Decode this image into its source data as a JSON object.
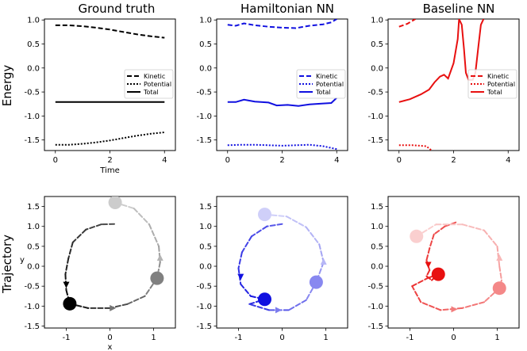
{
  "column_titles": [
    "Ground truth",
    "Hamiltonian NN",
    "Baseline NN"
  ],
  "row_labels": [
    "Energy",
    "Trajectory"
  ],
  "colors": {
    "truth": "#000000",
    "hnn": "#1010e0",
    "baseline": "#e81010"
  },
  "chart_data": [
    {
      "type": "line",
      "title": "Ground truth",
      "xlabel": "Time",
      "ylabel": "Energy",
      "xlim": [
        -0.4,
        4.4
      ],
      "ylim": [
        -1.72,
        1.02
      ],
      "xticks": [
        "0",
        "2",
        "4"
      ],
      "yticks": [
        "1.0",
        "0.5",
        "0.0",
        "-0.5",
        "-1.0",
        "-1.5"
      ],
      "legend_position": "center-right",
      "series": [
        {
          "name": "Kinetic",
          "style": "dashed",
          "x": [
            0,
            0.5,
            1,
            1.5,
            2,
            2.5,
            3,
            3.5,
            4
          ],
          "y": [
            0.89,
            0.89,
            0.87,
            0.84,
            0.8,
            0.75,
            0.7,
            0.66,
            0.63
          ]
        },
        {
          "name": "Potential",
          "style": "dotted",
          "x": [
            0,
            0.5,
            1,
            1.5,
            2,
            2.5,
            3,
            3.5,
            4
          ],
          "y": [
            -1.6,
            -1.6,
            -1.58,
            -1.55,
            -1.51,
            -1.46,
            -1.41,
            -1.37,
            -1.34
          ]
        },
        {
          "name": "Total",
          "style": "solid",
          "x": [
            0,
            4
          ],
          "y": [
            -0.71,
            -0.71
          ]
        }
      ]
    },
    {
      "type": "line",
      "title": "Hamiltonian NN",
      "xlabel": "",
      "ylabel": "",
      "xlim": [
        -0.4,
        4.4
      ],
      "ylim": [
        -1.72,
        1.02
      ],
      "xticks": [
        "0",
        "2",
        "4"
      ],
      "yticks": [
        "1.0",
        "0.5",
        "0.0",
        "-0.5",
        "-1.0",
        "-1.5"
      ],
      "legend_position": "center-right",
      "series": [
        {
          "name": "Kinetic",
          "style": "dashed",
          "x": [
            0,
            0.3,
            0.6,
            1.0,
            1.5,
            2.0,
            2.5,
            3.0,
            3.5,
            3.8,
            4.0
          ],
          "y": [
            0.9,
            0.88,
            0.93,
            0.89,
            0.86,
            0.84,
            0.83,
            0.88,
            0.91,
            0.95,
            1.02
          ]
        },
        {
          "name": "Potential",
          "style": "dotted",
          "x": [
            0,
            0.5,
            1.0,
            1.5,
            2.0,
            2.5,
            3.0,
            3.5,
            4.0
          ],
          "y": [
            -1.61,
            -1.6,
            -1.6,
            -1.61,
            -1.62,
            -1.61,
            -1.6,
            -1.63,
            -1.69
          ]
        },
        {
          "name": "Total",
          "style": "solid",
          "x": [
            0,
            0.3,
            0.6,
            1.0,
            1.5,
            1.8,
            2.2,
            2.6,
            3.0,
            3.5,
            3.8,
            4.0
          ],
          "y": [
            -0.71,
            -0.71,
            -0.66,
            -0.7,
            -0.72,
            -0.78,
            -0.77,
            -0.79,
            -0.76,
            -0.74,
            -0.73,
            -0.62
          ]
        }
      ]
    },
    {
      "type": "line",
      "title": "Baseline NN",
      "xlabel": "",
      "ylabel": "",
      "xlim": [
        -0.4,
        4.4
      ],
      "ylim": [
        -1.72,
        1.02
      ],
      "xticks": [
        "0",
        "2",
        "4"
      ],
      "yticks": [
        "1.0",
        "0.5",
        "0.0",
        "-0.5",
        "-1.0",
        "-1.5"
      ],
      "legend_position": "center-right",
      "series": [
        {
          "name": "Kinetic",
          "style": "dashed",
          "x": [
            0,
            0.3,
            0.6
          ],
          "y": [
            0.86,
            0.92,
            1.02
          ]
        },
        {
          "name": "Potential",
          "style": "dotted",
          "x": [
            0,
            0.5,
            1.0,
            1.2
          ],
          "y": [
            -1.61,
            -1.61,
            -1.63,
            -1.72
          ]
        },
        {
          "name": "Total",
          "style": "solid",
          "x": [
            0,
            0.4,
            0.8,
            1.1,
            1.3,
            1.5,
            1.65,
            1.8,
            2.0,
            2.15,
            2.2,
            2.3,
            2.38,
            2.45,
            2.55,
            2.7,
            2.8,
            2.9,
            3.0,
            3.1
          ],
          "y": [
            -0.71,
            -0.65,
            -0.55,
            -0.45,
            -0.3,
            -0.18,
            -0.14,
            -0.22,
            0.1,
            0.6,
            1.02,
            0.9,
            0.4,
            -0.1,
            -0.25,
            -0.25,
            -0.1,
            0.4,
            0.9,
            1.02
          ]
        }
      ]
    },
    {
      "type": "line",
      "title": "",
      "xlabel": "x",
      "ylabel": "y",
      "xlim": [
        -1.5,
        1.5
      ],
      "ylim": [
        -1.55,
        1.75
      ],
      "xticks": [
        "-1",
        "0",
        "1"
      ],
      "yticks": [
        "1.5",
        "1.0",
        "0.5",
        "0.0",
        "-0.5",
        "-1.0",
        "-1.5"
      ],
      "series": [
        {
          "name": "",
          "color": "#000000",
          "start": [
            0.1,
            1.06
          ],
          "end": [
            -0.92,
            -0.94
          ],
          "points": [
            [
              0.1,
              1.06
            ],
            [
              -0.2,
              1.05
            ],
            [
              -0.55,
              0.92
            ],
            [
              -0.85,
              0.6
            ],
            [
              -0.95,
              0.2
            ],
            [
              -1.02,
              -0.2
            ],
            [
              -1.0,
              -0.6
            ],
            [
              -0.92,
              -0.94
            ]
          ]
        },
        {
          "name": "",
          "color": "#000000",
          "start": [
            0.12,
            1.6
          ],
          "end": [
            1.08,
            -0.3
          ],
          "points": [
            [
              0.12,
              1.6
            ],
            [
              0.55,
              1.45
            ],
            [
              0.9,
              1.05
            ],
            [
              1.12,
              0.5
            ],
            [
              1.15,
              0.1
            ],
            [
              1.08,
              -0.3
            ]
          ]
        },
        {
          "name": "",
          "color": "#000000",
          "start": [
            1.08,
            -0.3
          ],
          "end": [
            -0.92,
            -0.94
          ],
          "points": [
            [
              1.08,
              -0.3
            ],
            [
              0.8,
              -0.75
            ],
            [
              0.4,
              -0.95
            ],
            [
              0.0,
              -1.05
            ],
            [
              -0.5,
              -1.05
            ],
            [
              -0.92,
              -0.94
            ]
          ]
        }
      ],
      "markers": [
        {
          "x": 0.12,
          "y": 1.6,
          "shade": 0.2
        },
        {
          "x": 1.08,
          "y": -0.3,
          "shade": 0.5
        },
        {
          "x": -0.92,
          "y": -0.94,
          "shade": 1.0
        }
      ],
      "arrows": [
        {
          "x": -1.0,
          "y": -0.45,
          "dir": "down",
          "shade": 1.0
        },
        {
          "x": 1.15,
          "y": 0.2,
          "dir": "up",
          "shade": 0.3
        },
        {
          "x": 0.05,
          "y": -1.05,
          "dir": "right",
          "shade": 0.55
        }
      ]
    },
    {
      "type": "line",
      "title": "",
      "xlabel": "",
      "ylabel": "",
      "xlim": [
        -1.5,
        1.5
      ],
      "ylim": [
        -1.55,
        1.75
      ],
      "xticks": [
        "-1",
        "0",
        "1"
      ],
      "yticks": [
        "1.5",
        "1.0",
        "0.5",
        "0.0",
        "-0.5",
        "-1.0",
        "-1.5"
      ],
      "series": [
        {
          "name": "",
          "color": "#1010e0",
          "start": [
            0.0,
            1.06
          ],
          "end": [
            -0.4,
            -0.83
          ],
          "points": [
            [
              0.0,
              1.06
            ],
            [
              -0.35,
              1.0
            ],
            [
              -0.7,
              0.75
            ],
            [
              -0.92,
              0.35
            ],
            [
              -1.0,
              -0.05
            ],
            [
              -0.95,
              -0.45
            ],
            [
              -0.72,
              -0.75
            ],
            [
              -0.4,
              -0.83
            ]
          ]
        },
        {
          "name": "",
          "color": "#1010e0",
          "start": [
            -0.4,
            1.3
          ],
          "end": [
            0.78,
            -0.4
          ],
          "points": [
            [
              -0.4,
              1.3
            ],
            [
              0.1,
              1.25
            ],
            [
              0.55,
              0.98
            ],
            [
              0.85,
              0.55
            ],
            [
              0.95,
              0.1
            ],
            [
              0.78,
              -0.4
            ]
          ]
        },
        {
          "name": "",
          "color": "#1010e0",
          "start": [
            0.78,
            -0.4
          ],
          "end": [
            -0.4,
            -0.83
          ],
          "points": [
            [
              0.78,
              -0.4
            ],
            [
              0.55,
              -0.85
            ],
            [
              0.15,
              -1.1
            ],
            [
              -0.3,
              -1.1
            ],
            [
              -0.75,
              -0.95
            ],
            [
              -0.4,
              -0.83
            ]
          ]
        }
      ],
      "markers": [
        {
          "x": -0.4,
          "y": 1.3,
          "shade": 0.2
        },
        {
          "x": 0.78,
          "y": -0.4,
          "shade": 0.5
        },
        {
          "x": -0.4,
          "y": -0.83,
          "shade": 1.0
        }
      ],
      "arrows": [
        {
          "x": -0.95,
          "y": -0.25,
          "dir": "down",
          "shade": 1.0
        },
        {
          "x": 0.95,
          "y": 0.1,
          "dir": "up",
          "shade": 0.3
        },
        {
          "x": -0.1,
          "y": -1.1,
          "dir": "right",
          "shade": 0.55
        }
      ]
    },
    {
      "type": "line",
      "title": "",
      "xlabel": "",
      "ylabel": "",
      "xlim": [
        -1.5,
        1.5
      ],
      "ylim": [
        -1.55,
        1.75
      ],
      "xticks": [
        "-1",
        "0",
        "1"
      ],
      "yticks": [
        "1.5",
        "1.0",
        "0.5",
        "0.0",
        "-0.5",
        "-1.0",
        "-1.5"
      ],
      "series": [
        {
          "name": "",
          "color": "#e81010",
          "start": [
            0.05,
            1.1
          ],
          "end": [
            -0.35,
            -0.2
          ],
          "points": [
            [
              0.05,
              1.1
            ],
            [
              -0.2,
              1.0
            ],
            [
              -0.45,
              0.8
            ],
            [
              -0.55,
              0.45
            ],
            [
              -0.62,
              0.15
            ],
            [
              -0.55,
              -0.1
            ],
            [
              -0.62,
              -0.25
            ],
            [
              -0.5,
              -0.35
            ],
            [
              -0.35,
              -0.2
            ]
          ]
        },
        {
          "name": "",
          "color": "#e81010",
          "start": [
            -0.85,
            0.75
          ],
          "end": [
            1.05,
            -0.55
          ],
          "points": [
            [
              -0.85,
              0.75
            ],
            [
              -0.4,
              1.05
            ],
            [
              0.2,
              1.05
            ],
            [
              0.7,
              0.9
            ],
            [
              1.0,
              0.5
            ],
            [
              1.05,
              0.0
            ],
            [
              1.1,
              -0.35
            ],
            [
              1.05,
              -0.55
            ]
          ]
        },
        {
          "name": "",
          "color": "#e81010",
          "start": [
            1.05,
            -0.55
          ],
          "end": [
            -0.35,
            -0.2
          ],
          "points": [
            [
              1.05,
              -0.55
            ],
            [
              0.7,
              -0.9
            ],
            [
              0.2,
              -1.05
            ],
            [
              -0.3,
              -1.1
            ],
            [
              -0.75,
              -0.9
            ],
            [
              -0.95,
              -0.5
            ],
            [
              -0.6,
              -0.3
            ],
            [
              -0.35,
              -0.2
            ]
          ]
        }
      ],
      "markers": [
        {
          "x": -0.85,
          "y": 0.75,
          "shade": 0.2
        },
        {
          "x": 1.05,
          "y": -0.55,
          "shade": 0.5
        },
        {
          "x": -0.35,
          "y": -0.2,
          "shade": 1.0
        }
      ],
      "arrows": [
        {
          "x": -0.58,
          "y": 0.05,
          "dir": "down",
          "shade": 1.0
        },
        {
          "x": 1.05,
          "y": 0.2,
          "dir": "up",
          "shade": 0.3
        },
        {
          "x": 0.0,
          "y": -1.08,
          "dir": "right",
          "shade": 0.55
        }
      ]
    }
  ]
}
